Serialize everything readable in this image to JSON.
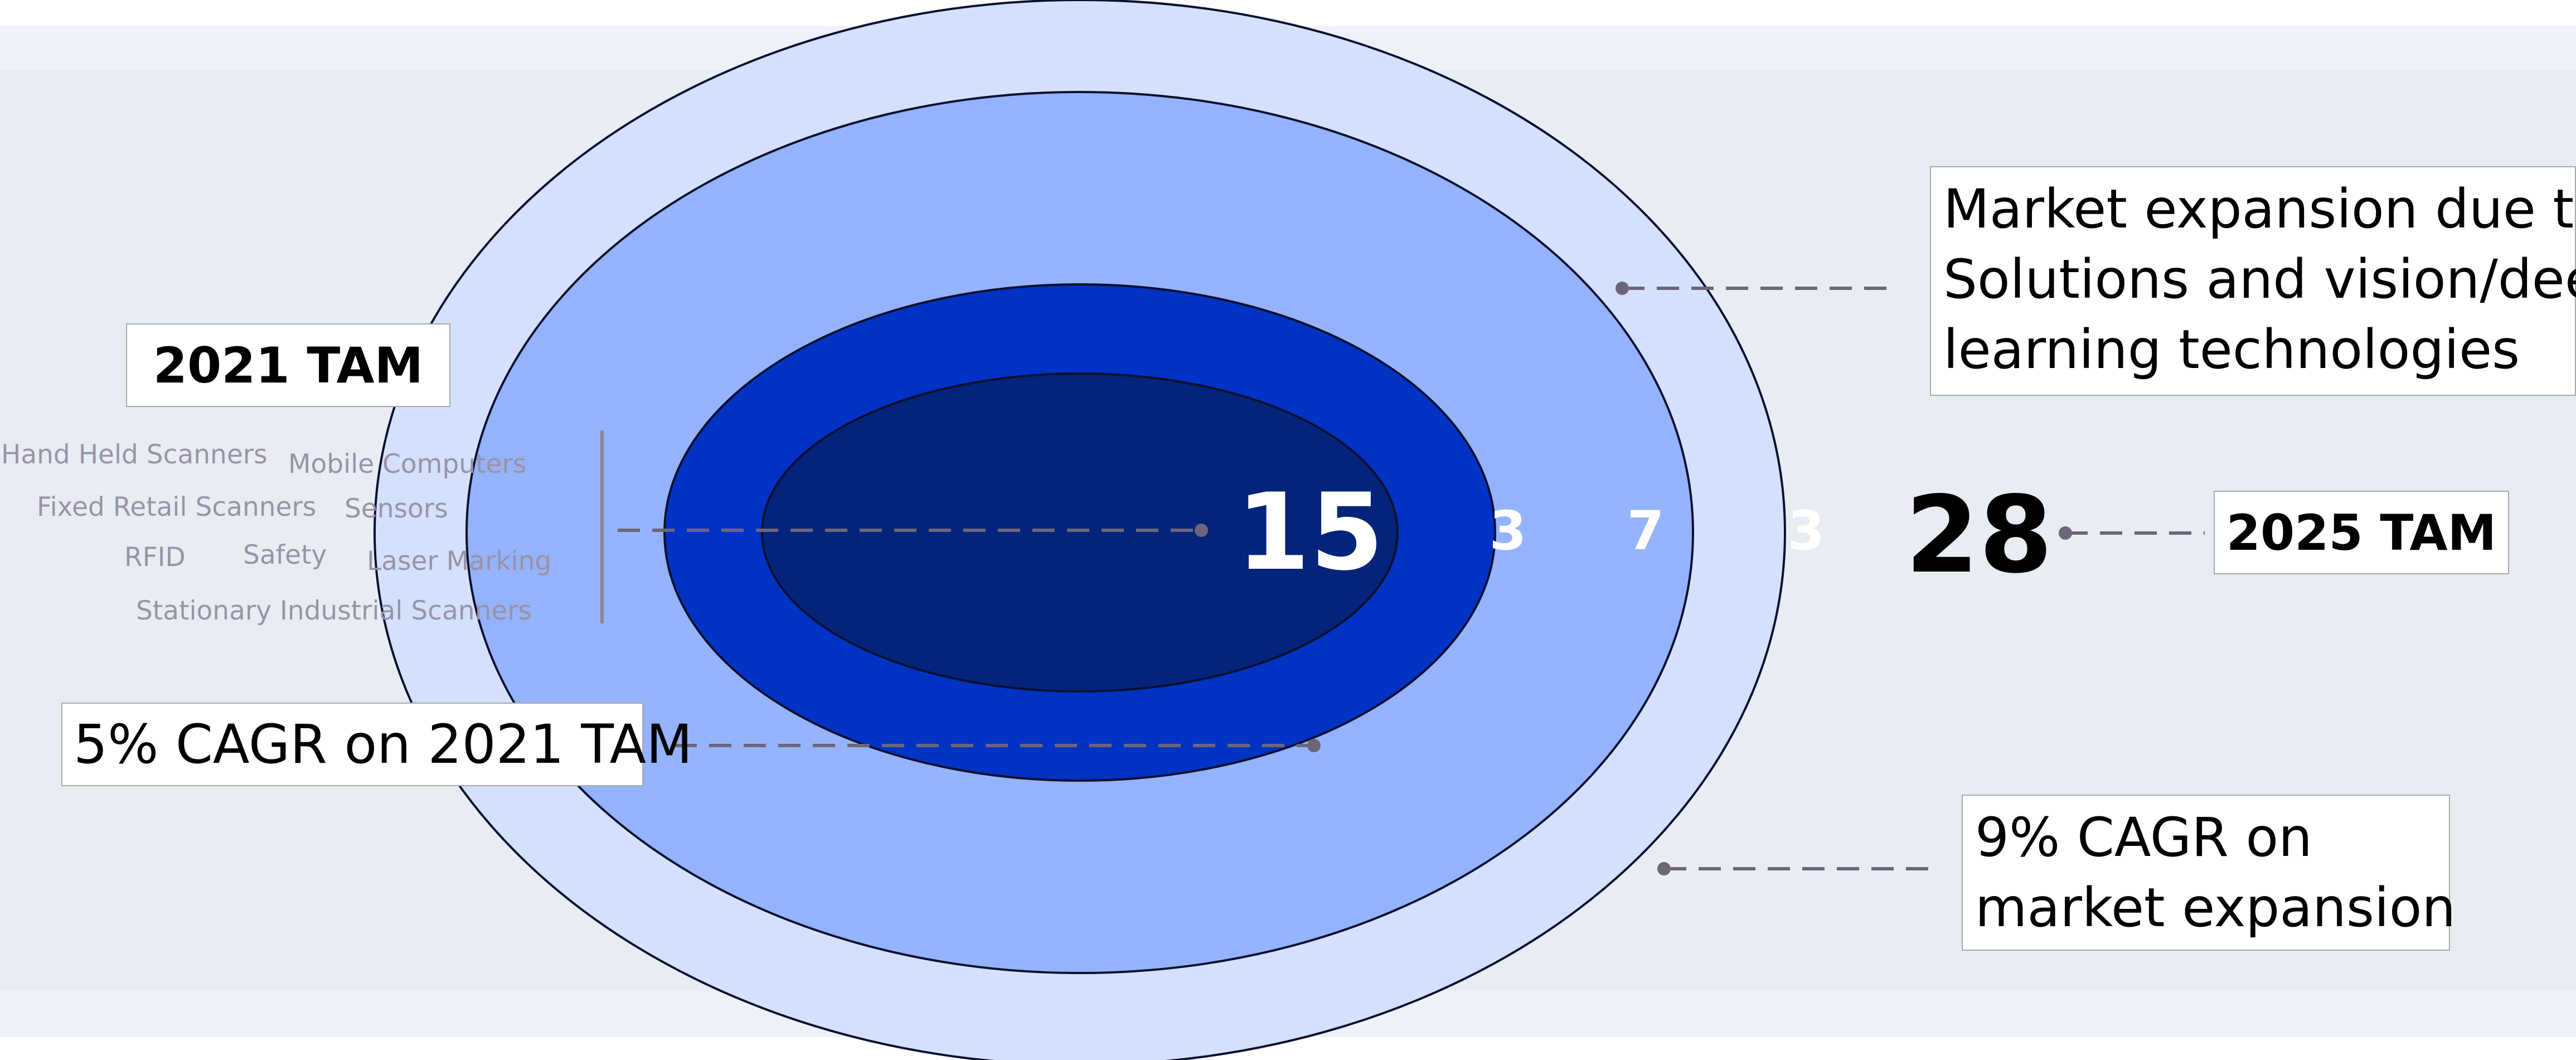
{
  "left_panel": {
    "tam_2021_label": "2021 TAM",
    "segments": [
      "Hand Held Scanners",
      "Mobile Computers",
      "Fixed Retail Scanners",
      "Sensors",
      "RFID",
      "Safety",
      "Laser Marking",
      "Stationary Industrial Scanners"
    ],
    "cagr_2021_label": "5% CAGR on 2021 TAM"
  },
  "rings": {
    "core_value": "15",
    "ring1_value": "3",
    "ring2_value": "7",
    "ring3_value": "3",
    "colors": {
      "core": "#03247a",
      "ring1": "#0033c4",
      "ring2": "#94b3fc",
      "ring3": "#d4e1fd"
    }
  },
  "right_panel": {
    "expansion_lines": [
      "Market expansion due to",
      "Solutions and vision/deep",
      "learning technologies"
    ],
    "total_value": "28",
    "tam_2025_label": "2025 TAM",
    "cagr_expansion_lines": [
      "9% CAGR on",
      "market expansion"
    ]
  }
}
